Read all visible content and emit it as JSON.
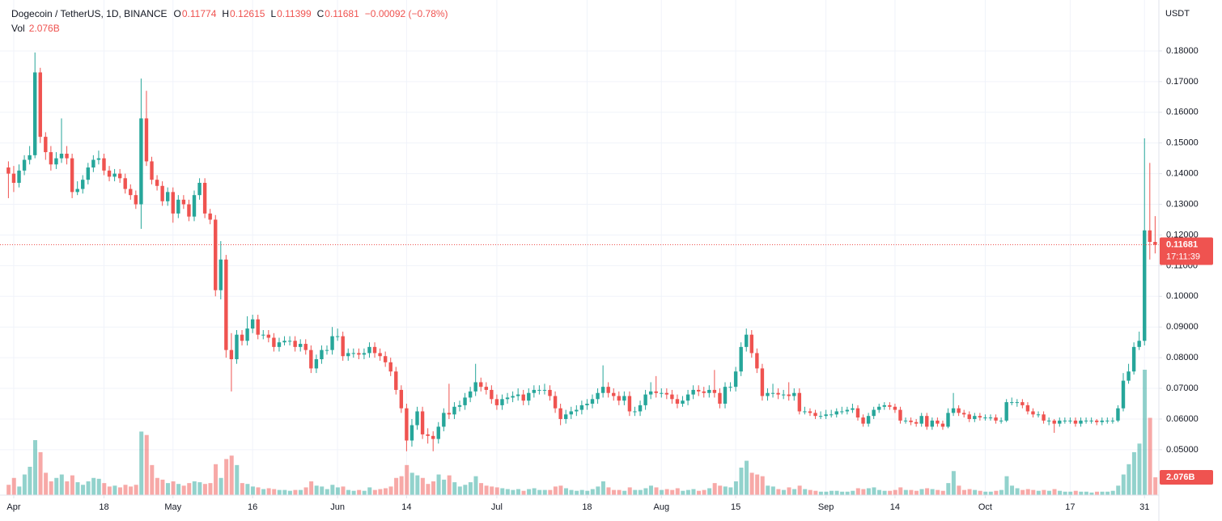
{
  "chart_data": {
    "type": "candlestick",
    "title": "Dogecoin / TetherUS, 1D, BINANCE",
    "ohlc_labels": [
      "O",
      "H",
      "L",
      "C"
    ],
    "change": "−0.00092 (−0.78%)",
    "volume_label": "Vol",
    "last_volume_label": "2.076B",
    "currency": "USDT",
    "countdown": "17:11:39",
    "up_color": "#26a69a",
    "down_color": "#ef5350",
    "grid": true,
    "ylim": [
      0.0352,
      0.1966
    ],
    "yticks": [
      {
        "value": 0.05,
        "label": "0.05000"
      },
      {
        "value": 0.06,
        "label": "0.06000"
      },
      {
        "value": 0.07,
        "label": "0.07000"
      },
      {
        "value": 0.08,
        "label": "0.08000"
      },
      {
        "value": 0.09,
        "label": "0.09000"
      },
      {
        "value": 0.1,
        "label": "0.10000"
      },
      {
        "value": 0.11,
        "label": "0.11000"
      },
      {
        "value": 0.12,
        "label": "0.12000"
      },
      {
        "value": 0.13,
        "label": "0.13000"
      },
      {
        "value": 0.14,
        "label": "0.14000"
      },
      {
        "value": 0.15,
        "label": "0.15000"
      },
      {
        "value": 0.16,
        "label": "0.16000"
      },
      {
        "value": 0.17,
        "label": "0.17000"
      },
      {
        "value": 0.18,
        "label": "0.18000"
      }
    ],
    "xticks": [
      {
        "value": 1,
        "label": "Apr"
      },
      {
        "value": 18,
        "label": "18"
      },
      {
        "value": 31,
        "label": "May"
      },
      {
        "value": 46,
        "label": "16"
      },
      {
        "value": 62,
        "label": "Jun"
      },
      {
        "value": 75,
        "label": "14"
      },
      {
        "value": 92,
        "label": "Jul"
      },
      {
        "value": 109,
        "label": "18"
      },
      {
        "value": 123,
        "label": "Aug"
      },
      {
        "value": 137,
        "label": "15"
      },
      {
        "value": 154,
        "label": "Sep"
      },
      {
        "value": 167,
        "label": "14"
      },
      {
        "value": 184,
        "label": "Oct"
      },
      {
        "value": 200,
        "label": "17"
      },
      {
        "value": 214,
        "label": "31"
      }
    ],
    "open": [
      0.142,
      0.14,
      0.137,
      0.141,
      0.1445,
      0.146,
      0.173,
      0.152,
      0.147,
      0.143,
      0.145,
      0.1465,
      0.145,
      0.134,
      0.135,
      0.138,
      0.142,
      0.1445,
      0.145,
      0.141,
      0.139,
      0.14,
      0.1385,
      0.135,
      0.133,
      0.13,
      0.158,
      0.144,
      0.138,
      0.136,
      0.131,
      0.134,
      0.127,
      0.1315,
      0.13,
      0.126,
      0.133,
      0.137,
      0.127,
      0.125,
      0.102,
      0.112,
      0.0825,
      0.0795,
      0.0875,
      0.0855,
      0.0895,
      0.0925,
      0.0875,
      0.0875,
      0.0865,
      0.0835,
      0.085,
      0.0855,
      0.0855,
      0.0835,
      0.0845,
      0.0825,
      0.0765,
      0.0795,
      0.0825,
      0.0825,
      0.087,
      0.087,
      0.0805,
      0.0815,
      0.0815,
      0.081,
      0.0815,
      0.0835,
      0.0815,
      0.0805,
      0.0785,
      0.0755,
      0.0695,
      0.0635,
      0.053,
      0.058,
      0.0625,
      0.055,
      0.0545,
      0.0535,
      0.0575,
      0.062,
      0.0615,
      0.064,
      0.0645,
      0.067,
      0.069,
      0.072,
      0.0705,
      0.0695,
      0.0665,
      0.0645,
      0.0665,
      0.067,
      0.0675,
      0.068,
      0.066,
      0.0685,
      0.0695,
      0.0695,
      0.0695,
      0.0675,
      0.0635,
      0.06,
      0.0615,
      0.0625,
      0.063,
      0.0645,
      0.065,
      0.0665,
      0.0685,
      0.0705,
      0.0685,
      0.0675,
      0.066,
      0.0675,
      0.0625,
      0.0625,
      0.0645,
      0.068,
      0.069,
      0.0685,
      0.0685,
      0.068,
      0.0665,
      0.065,
      0.066,
      0.068,
      0.0695,
      0.069,
      0.0685,
      0.0695,
      0.0685,
      0.065,
      0.0705,
      0.0705,
      0.0755,
      0.0835,
      0.0875,
      0.0815,
      0.0765,
      0.0675,
      0.0685,
      0.0685,
      0.068,
      0.068,
      0.0675,
      0.0685,
      0.0625,
      0.0625,
      0.062,
      0.061,
      0.061,
      0.0615,
      0.0615,
      0.0625,
      0.0625,
      0.063,
      0.0635,
      0.0605,
      0.0585,
      0.061,
      0.063,
      0.064,
      0.0645,
      0.064,
      0.063,
      0.0595,
      0.0595,
      0.059,
      0.0585,
      0.061,
      0.0575,
      0.0595,
      0.0585,
      0.0575,
      0.062,
      0.0635,
      0.062,
      0.0615,
      0.06,
      0.061,
      0.0605,
      0.0605,
      0.0605,
      0.0595,
      0.0595,
      0.0655,
      0.0655,
      0.0655,
      0.0645,
      0.0625,
      0.0615,
      0.0615,
      0.0595,
      0.0595,
      0.0585,
      0.0595,
      0.0595,
      0.0595,
      0.0585,
      0.0595,
      0.0595,
      0.0595,
      0.059,
      0.0595,
      0.0595,
      0.0595,
      0.0635,
      0.0725,
      0.0755,
      0.0835,
      0.0855,
      0.1215,
      0.11774
    ],
    "high": [
      0.144,
      0.1425,
      0.143,
      0.146,
      0.149,
      0.1795,
      0.1745,
      0.1535,
      0.149,
      0.147,
      0.158,
      0.149,
      0.1465,
      0.1375,
      0.1395,
      0.1435,
      0.146,
      0.1475,
      0.1465,
      0.1425,
      0.1415,
      0.1415,
      0.14,
      0.1365,
      0.1345,
      0.171,
      0.167,
      0.1455,
      0.1395,
      0.1375,
      0.1355,
      0.1355,
      0.133,
      0.133,
      0.1315,
      0.1345,
      0.1385,
      0.1385,
      0.1285,
      0.1265,
      0.118,
      0.1135,
      0.088,
      0.089,
      0.089,
      0.0935,
      0.094,
      0.094,
      0.089,
      0.089,
      0.088,
      0.0865,
      0.087,
      0.087,
      0.087,
      0.086,
      0.086,
      0.084,
      0.081,
      0.084,
      0.084,
      0.09,
      0.0895,
      0.0885,
      0.083,
      0.083,
      0.083,
      0.083,
      0.085,
      0.085,
      0.083,
      0.082,
      0.08,
      0.077,
      0.071,
      0.065,
      0.06,
      0.064,
      0.064,
      0.057,
      0.056,
      0.059,
      0.0635,
      0.0715,
      0.0655,
      0.066,
      0.0685,
      0.0705,
      0.078,
      0.0735,
      0.072,
      0.071,
      0.068,
      0.068,
      0.0685,
      0.069,
      0.07,
      0.0695,
      0.07,
      0.071,
      0.071,
      0.0715,
      0.071,
      0.069,
      0.065,
      0.063,
      0.064,
      0.0645,
      0.066,
      0.0665,
      0.068,
      0.07,
      0.0775,
      0.072,
      0.07,
      0.069,
      0.069,
      0.069,
      0.064,
      0.066,
      0.0695,
      0.072,
      0.074,
      0.07,
      0.07,
      0.0695,
      0.068,
      0.0675,
      0.0695,
      0.071,
      0.071,
      0.0705,
      0.071,
      0.076,
      0.07,
      0.072,
      0.072,
      0.077,
      0.085,
      0.0895,
      0.089,
      0.083,
      0.078,
      0.07,
      0.0715,
      0.07,
      0.0695,
      0.072,
      0.07,
      0.07,
      0.064,
      0.0635,
      0.063,
      0.0625,
      0.063,
      0.063,
      0.0635,
      0.064,
      0.064,
      0.065,
      0.0645,
      0.0615,
      0.062,
      0.064,
      0.065,
      0.0655,
      0.0655,
      0.065,
      0.064,
      0.0605,
      0.0605,
      0.06,
      0.062,
      0.062,
      0.0605,
      0.0605,
      0.0595,
      0.0635,
      0.0685,
      0.0645,
      0.063,
      0.0625,
      0.062,
      0.062,
      0.0615,
      0.0615,
      0.0615,
      0.0605,
      0.0665,
      0.067,
      0.0665,
      0.0665,
      0.0655,
      0.0635,
      0.0625,
      0.0625,
      0.0605,
      0.06,
      0.0605,
      0.0605,
      0.0605,
      0.0605,
      0.0605,
      0.0605,
      0.0605,
      0.06,
      0.0605,
      0.0605,
      0.0605,
      0.0645,
      0.075,
      0.078,
      0.085,
      0.0885,
      0.1515,
      0.1435,
      0.12615
    ],
    "low": [
      0.132,
      0.134,
      0.1355,
      0.1395,
      0.143,
      0.145,
      0.15,
      0.1445,
      0.141,
      0.1415,
      0.1435,
      0.143,
      0.132,
      0.133,
      0.1335,
      0.1365,
      0.1405,
      0.143,
      0.1395,
      0.1375,
      0.1375,
      0.137,
      0.1335,
      0.1315,
      0.1285,
      0.122,
      0.1425,
      0.1365,
      0.1345,
      0.1295,
      0.1295,
      0.124,
      0.1255,
      0.1285,
      0.1245,
      0.1245,
      0.1315,
      0.1255,
      0.1235,
      0.1,
      0.099,
      0.08,
      0.069,
      0.078,
      0.084,
      0.084,
      0.088,
      0.086,
      0.086,
      0.085,
      0.082,
      0.082,
      0.084,
      0.084,
      0.082,
      0.082,
      0.081,
      0.075,
      0.075,
      0.078,
      0.081,
      0.081,
      0.0855,
      0.079,
      0.079,
      0.08,
      0.0795,
      0.0795,
      0.08,
      0.08,
      0.079,
      0.077,
      0.074,
      0.068,
      0.062,
      0.0495,
      0.051,
      0.0565,
      0.0535,
      0.052,
      0.0495,
      0.052,
      0.056,
      0.06,
      0.06,
      0.0625,
      0.063,
      0.0655,
      0.0675,
      0.069,
      0.068,
      0.065,
      0.063,
      0.063,
      0.065,
      0.0655,
      0.066,
      0.0645,
      0.0645,
      0.067,
      0.068,
      0.068,
      0.066,
      0.062,
      0.058,
      0.0585,
      0.06,
      0.061,
      0.0615,
      0.063,
      0.0635,
      0.065,
      0.067,
      0.067,
      0.066,
      0.0645,
      0.0645,
      0.061,
      0.061,
      0.061,
      0.063,
      0.0665,
      0.067,
      0.067,
      0.0665,
      0.065,
      0.0635,
      0.064,
      0.0645,
      0.0665,
      0.0675,
      0.067,
      0.067,
      0.067,
      0.0635,
      0.0635,
      0.069,
      0.069,
      0.074,
      0.082,
      0.08,
      0.075,
      0.066,
      0.066,
      0.067,
      0.0665,
      0.0665,
      0.066,
      0.066,
      0.0615,
      0.0615,
      0.061,
      0.06,
      0.06,
      0.06,
      0.0605,
      0.0605,
      0.0615,
      0.0615,
      0.062,
      0.0595,
      0.0575,
      0.0575,
      0.06,
      0.062,
      0.063,
      0.063,
      0.062,
      0.0585,
      0.0585,
      0.058,
      0.0575,
      0.0575,
      0.0565,
      0.0565,
      0.0575,
      0.0565,
      0.057,
      0.061,
      0.061,
      0.0605,
      0.059,
      0.059,
      0.0595,
      0.0595,
      0.0595,
      0.0585,
      0.0585,
      0.059,
      0.0645,
      0.064,
      0.0635,
      0.0615,
      0.0605,
      0.0605,
      0.0585,
      0.058,
      0.0555,
      0.0575,
      0.0585,
      0.0585,
      0.0575,
      0.0575,
      0.0585,
      0.0585,
      0.058,
      0.058,
      0.0585,
      0.0585,
      0.059,
      0.0625,
      0.0715,
      0.0745,
      0.0825,
      0.084,
      0.112,
      0.11399
    ],
    "close": [
      0.14,
      0.137,
      0.141,
      0.1445,
      0.146,
      0.173,
      0.152,
      0.147,
      0.143,
      0.145,
      0.1465,
      0.145,
      0.134,
      0.135,
      0.138,
      0.142,
      0.1445,
      0.145,
      0.141,
      0.139,
      0.14,
      0.1385,
      0.135,
      0.133,
      0.13,
      0.158,
      0.144,
      0.138,
      0.136,
      0.131,
      0.134,
      0.127,
      0.1315,
      0.13,
      0.126,
      0.133,
      0.137,
      0.127,
      0.125,
      0.102,
      0.112,
      0.0825,
      0.0795,
      0.0875,
      0.0855,
      0.0895,
      0.0925,
      0.0875,
      0.0875,
      0.0865,
      0.0835,
      0.085,
      0.0855,
      0.0855,
      0.0835,
      0.0845,
      0.0825,
      0.0765,
      0.0795,
      0.0825,
      0.0825,
      0.087,
      0.087,
      0.0805,
      0.0815,
      0.0815,
      0.081,
      0.0815,
      0.0835,
      0.0815,
      0.0805,
      0.0785,
      0.0755,
      0.0695,
      0.0635,
      0.053,
      0.058,
      0.0625,
      0.055,
      0.0545,
      0.0535,
      0.0575,
      0.062,
      0.0615,
      0.064,
      0.0645,
      0.067,
      0.069,
      0.072,
      0.0705,
      0.0695,
      0.0665,
      0.0645,
      0.0665,
      0.067,
      0.0675,
      0.068,
      0.066,
      0.0685,
      0.0695,
      0.0695,
      0.0695,
      0.0675,
      0.0635,
      0.06,
      0.0615,
      0.0625,
      0.063,
      0.0645,
      0.065,
      0.0665,
      0.0685,
      0.0705,
      0.0685,
      0.0675,
      0.066,
      0.0675,
      0.0625,
      0.0625,
      0.0645,
      0.068,
      0.069,
      0.0685,
      0.0685,
      0.068,
      0.0665,
      0.065,
      0.066,
      0.068,
      0.0695,
      0.069,
      0.0685,
      0.0695,
      0.0685,
      0.065,
      0.0705,
      0.0705,
      0.0755,
      0.0835,
      0.0875,
      0.0815,
      0.0765,
      0.0675,
      0.0685,
      0.0685,
      0.068,
      0.068,
      0.0675,
      0.0685,
      0.0625,
      0.0625,
      0.062,
      0.061,
      0.061,
      0.0615,
      0.0615,
      0.0625,
      0.0625,
      0.063,
      0.0635,
      0.0605,
      0.0585,
      0.061,
      0.063,
      0.064,
      0.0645,
      0.064,
      0.063,
      0.0595,
      0.0595,
      0.059,
      0.0585,
      0.061,
      0.0575,
      0.0595,
      0.0585,
      0.0575,
      0.062,
      0.0635,
      0.062,
      0.0615,
      0.06,
      0.061,
      0.0605,
      0.0605,
      0.0605,
      0.0595,
      0.0595,
      0.0655,
      0.0655,
      0.0655,
      0.0645,
      0.0625,
      0.0615,
      0.0615,
      0.0595,
      0.0595,
      0.0585,
      0.0595,
      0.0595,
      0.0595,
      0.0585,
      0.0595,
      0.0595,
      0.0595,
      0.059,
      0.0595,
      0.0595,
      0.0595,
      0.0635,
      0.0725,
      0.0755,
      0.0835,
      0.0855,
      0.1215,
      0.11774,
      0.11681
    ],
    "volume": [
      1.2,
      2.0,
      1.0,
      2.4,
      3.3,
      6.4,
      5.0,
      2.6,
      1.6,
      2.0,
      2.4,
      1.6,
      2.3,
      1.5,
      1.2,
      1.6,
      2.0,
      1.9,
      1.4,
      1.0,
      1.1,
      0.9,
      1.2,
      1.0,
      1.2,
      7.4,
      7.0,
      3.5,
      2.0,
      1.8,
      1.4,
      1.6,
      1.3,
      1.1,
      1.4,
      1.6,
      1.5,
      1.3,
      1.4,
      3.6,
      2.0,
      4.2,
      4.6,
      3.5,
      1.4,
      1.3,
      1.0,
      0.9,
      0.7,
      0.8,
      0.7,
      0.6,
      0.6,
      0.5,
      0.6,
      0.6,
      0.9,
      1.6,
      1.1,
      1.0,
      0.7,
      1.2,
      0.9,
      1.0,
      0.6,
      0.5,
      0.6,
      0.5,
      0.9,
      0.6,
      0.7,
      0.8,
      1.0,
      2.0,
      2.2,
      3.5,
      2.6,
      2.3,
      2.0,
      1.3,
      1.6,
      2.4,
      1.8,
      2.3,
      1.5,
      1.0,
      1.2,
      1.5,
      2.2,
      1.4,
      1.1,
      1.0,
      0.9,
      0.8,
      0.7,
      0.6,
      0.7,
      0.5,
      0.7,
      0.8,
      0.6,
      0.6,
      0.6,
      1.0,
      1.1,
      0.8,
      0.6,
      0.5,
      0.6,
      0.5,
      0.7,
      1.0,
      1.6,
      0.9,
      0.6,
      0.6,
      0.5,
      0.9,
      0.6,
      0.6,
      0.8,
      1.1,
      0.9,
      0.6,
      0.7,
      0.6,
      0.8,
      0.5,
      0.6,
      0.7,
      0.5,
      0.6,
      0.8,
      1.4,
      1.1,
      1.0,
      0.9,
      1.6,
      3.2,
      4.0,
      2.6,
      2.4,
      2.2,
      1.1,
      1.0,
      0.7,
      0.6,
      0.9,
      0.7,
      1.1,
      0.7,
      0.6,
      0.5,
      0.4,
      0.4,
      0.5,
      0.5,
      0.4,
      0.4,
      0.5,
      0.8,
      0.7,
      0.8,
      0.9,
      0.6,
      0.5,
      0.5,
      0.6,
      0.9,
      0.6,
      0.6,
      0.5,
      0.7,
      0.8,
      0.7,
      0.6,
      0.5,
      1.4,
      2.8,
      1.1,
      0.6,
      0.7,
      0.6,
      0.5,
      0.4,
      0.4,
      0.5,
      0.6,
      2.2,
      1.1,
      0.8,
      0.6,
      0.7,
      0.6,
      0.5,
      0.6,
      0.5,
      0.7,
      0.5,
      0.4,
      0.4,
      0.5,
      0.4,
      0.4,
      0.3,
      0.4,
      0.4,
      0.4,
      0.5,
      1.1,
      2.4,
      3.6,
      5.0,
      6.0,
      14.6,
      9.0,
      2.076
    ]
  }
}
